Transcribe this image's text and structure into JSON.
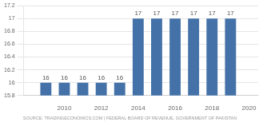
{
  "chart_data": {
    "type": "bar",
    "x": [
      2009,
      2010,
      2011,
      2012,
      2013,
      2014,
      2015,
      2016,
      2017,
      2018,
      2019
    ],
    "values": [
      16,
      16,
      16,
      16,
      16,
      17,
      17,
      17,
      17,
      17,
      17
    ],
    "color": "#4472a8",
    "xlim": [
      2007.8,
      2020.5
    ],
    "xticks": [
      2010,
      2012,
      2014,
      2016,
      2018,
      2020
    ],
    "ylim": [
      15.8,
      17.2
    ],
    "yticks": [
      15.8,
      16,
      16.2,
      16.4,
      16.6,
      16.8,
      17,
      17.2
    ],
    "grid": "y",
    "data_labels": true,
    "annotation": "SOURCE: TRADINGECONOMICS.COM | FEDERAL BOARD OF REVENUE, GOVERNMENT OF PAKISTAN"
  }
}
